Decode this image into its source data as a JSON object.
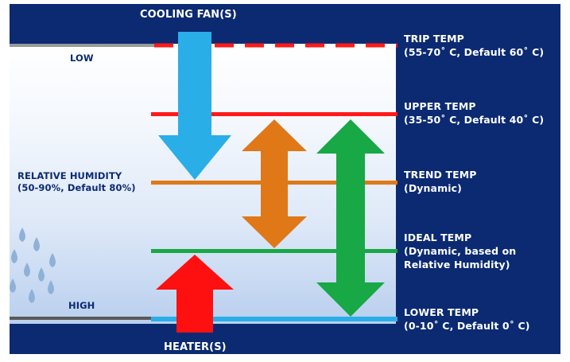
{
  "diagram": {
    "top_label": "COOLING FAN(S)",
    "bottom_label": "HEATER(S)",
    "low_label": "LOW",
    "high_label": "HIGH",
    "humidity_label": "RELATIVE HUMIDITY\n(50-90%, Default 80%)",
    "levels": {
      "trip": {
        "label": "TRIP TEMP\n(55-70˚ C, Default 60˚ C)"
      },
      "upper": {
        "label": "UPPER TEMP\n(35-50˚ C, Default 40˚ C)"
      },
      "trend": {
        "label": "TREND TEMP\n(Dynamic)"
      },
      "ideal": {
        "label": "IDEAL TEMP\n(Dynamic, based on\nRelative Humidity)"
      },
      "lower": {
        "label": "LOWER TEMP\n(0-10˚ C, Default 0˚ C)"
      }
    },
    "colors": {
      "background": "#0b2a72",
      "trip": "#ff1a1a",
      "upper": "#ff1a1a",
      "trend": "#e07818",
      "ideal": "#18a845",
      "lower": "#29aee8",
      "cooling_arrow": "#29aee8",
      "heater_arrow": "#ff1010",
      "range_arrow_trend_upper": "#e07818",
      "range_arrow_lower_upper": "#18a845",
      "droplets": "#8fb1d6"
    }
  }
}
